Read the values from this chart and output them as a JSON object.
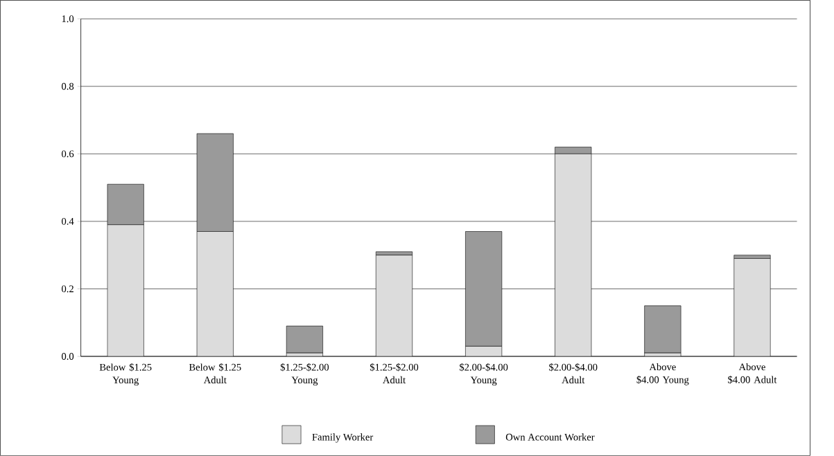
{
  "chart_data": {
    "type": "bar",
    "stacked": true,
    "categories": [
      "Below $1.25 Young",
      "Below $1.25 Adult",
      "$1.25-$2.00 Young",
      "$1.25-$2.00 Adult",
      "$2.00-$4.00 Young",
      "$2.00-$4.00 Adult",
      "Above $4.00 Young",
      "Above $4.00 Adult"
    ],
    "series": [
      {
        "name": "Family Worker",
        "color": "#dcdcdc",
        "values": [
          0.39,
          0.37,
          0.01,
          0.3,
          0.03,
          0.6,
          0.01,
          0.29
        ]
      },
      {
        "name": "Own Account Worker",
        "color": "#9a9a9a",
        "values": [
          0.12,
          0.29,
          0.08,
          0.01,
          0.34,
          0.02,
          0.14,
          0.01
        ]
      }
    ],
    "ylim": [
      0,
      1
    ],
    "yticks": [
      {
        "value": 0,
        "label": "0.0"
      },
      0.2,
      0.4,
      0.6,
      0.8,
      {
        "value": 1,
        "label": "1.0"
      }
    ],
    "grid": "y",
    "legend": "bottom"
  }
}
